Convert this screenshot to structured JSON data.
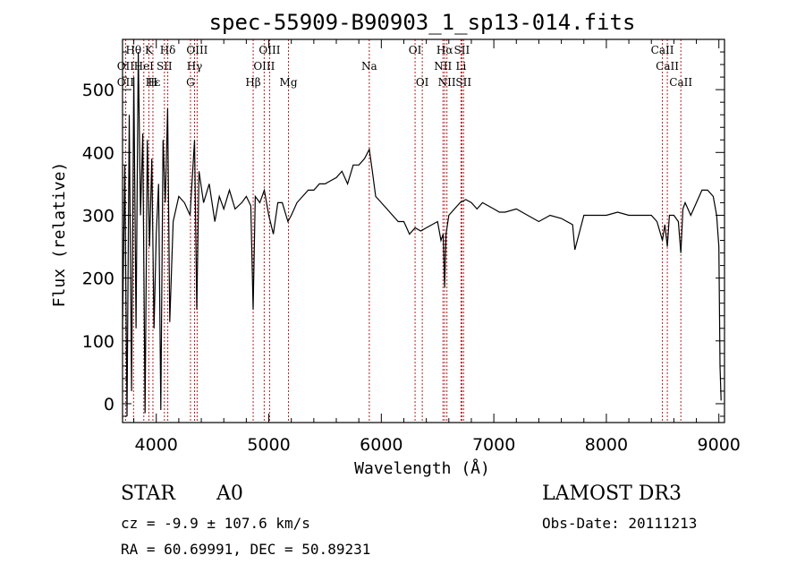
{
  "chart_data": {
    "type": "line",
    "title": "spec-55909-B90903_1_sp13-014.fits",
    "xlabel": "Wavelength (Å)",
    "ylabel": "Flux (relative)",
    "xlim": [
      3700,
      9050
    ],
    "ylim": [
      -30,
      580
    ],
    "xticks": [
      4000,
      5000,
      6000,
      7000,
      8000,
      9000
    ],
    "yticks": [
      0,
      100,
      200,
      300,
      400,
      500
    ],
    "grid": false,
    "series": [
      {
        "name": "flux",
        "x": [
          3700,
          3720,
          3740,
          3760,
          3780,
          3800,
          3820,
          3840,
          3860,
          3880,
          3900,
          3920,
          3940,
          3960,
          3980,
          4000,
          4020,
          4040,
          4060,
          4080,
          4101,
          4120,
          4150,
          4200,
          4250,
          4300,
          4340,
          4360,
          4380,
          4420,
          4470,
          4520,
          4560,
          4600,
          4650,
          4700,
          4760,
          4800,
          4840,
          4861,
          4880,
          4920,
          4960,
          5000,
          5040,
          5080,
          5120,
          5170,
          5200,
          5250,
          5300,
          5350,
          5400,
          5450,
          5500,
          5550,
          5600,
          5650,
          5700,
          5750,
          5800,
          5850,
          5893,
          5920,
          5950,
          6000,
          6050,
          6100,
          6150,
          6200,
          6250,
          6300,
          6350,
          6400,
          6450,
          6500,
          6530,
          6550,
          6563,
          6575,
          6600,
          6650,
          6700,
          6750,
          6800,
          6850,
          6900,
          6950,
          7000,
          7050,
          7100,
          7200,
          7300,
          7400,
          7500,
          7600,
          7700,
          7720,
          7800,
          7900,
          8000,
          8100,
          8200,
          8300,
          8400,
          8450,
          8498,
          8520,
          8542,
          8560,
          8600,
          8640,
          8662,
          8680,
          8700,
          8750,
          8800,
          8850,
          8900,
          8950,
          8980,
          9000,
          9010,
          9020
        ],
        "values": [
          120,
          380,
          -20,
          460,
          20,
          520,
          120,
          560,
          300,
          430,
          -15,
          420,
          250,
          390,
          120,
          270,
          350,
          -10,
          420,
          320,
          470,
          130,
          290,
          330,
          320,
          300,
          420,
          150,
          370,
          320,
          350,
          290,
          330,
          310,
          340,
          310,
          320,
          330,
          315,
          150,
          330,
          320,
          340,
          300,
          270,
          320,
          320,
          290,
          300,
          320,
          330,
          340,
          340,
          350,
          350,
          355,
          360,
          370,
          350,
          380,
          380,
          390,
          405,
          370,
          330,
          320,
          310,
          300,
          290,
          290,
          270,
          280,
          275,
          280,
          285,
          290,
          260,
          270,
          185,
          270,
          300,
          310,
          320,
          325,
          320,
          310,
          320,
          315,
          310,
          305,
          305,
          310,
          300,
          290,
          300,
          295,
          285,
          245,
          300,
          300,
          300,
          305,
          300,
          300,
          300,
          290,
          260,
          285,
          250,
          300,
          300,
          290,
          240,
          310,
          320,
          300,
          320,
          340,
          340,
          330,
          300,
          250,
          60,
          5
        ]
      }
    ],
    "annotations": [
      {
        "label": "Hθ",
        "x": 3798,
        "row": 0
      },
      {
        "label": "K",
        "x": 3934,
        "row": 0
      },
      {
        "label": "Hδ",
        "x": 4102,
        "row": 0
      },
      {
        "label": "OIII",
        "x": 4363,
        "row": 0
      },
      {
        "label": "OIII",
        "x": 5007,
        "row": 0
      },
      {
        "label": "OI",
        "x": 6300,
        "row": 0
      },
      {
        "label": "Hα",
        "x": 6563,
        "row": 0
      },
      {
        "label": "SII",
        "x": 6716,
        "row": 0
      },
      {
        "label": "CaII",
        "x": 8498,
        "row": 0
      },
      {
        "label": "OII",
        "x": 3727,
        "row": 1
      },
      {
        "label": "HeI",
        "x": 3889,
        "row": 1
      },
      {
        "label": "SII",
        "x": 4072,
        "row": 1
      },
      {
        "label": "Hγ",
        "x": 4340,
        "row": 1
      },
      {
        "label": "OIII",
        "x": 4959,
        "row": 1
      },
      {
        "label": "Na",
        "x": 5893,
        "row": 1
      },
      {
        "label": "NII",
        "x": 6548,
        "row": 1
      },
      {
        "label": "Li",
        "x": 6708,
        "row": 1
      },
      {
        "label": "CaII",
        "x": 8542,
        "row": 1
      },
      {
        "label": "OII",
        "x": 3727,
        "row": 2
      },
      {
        "label": "Hε",
        "x": 3970,
        "row": 2
      },
      {
        "label": "H",
        "x": 3968,
        "row": 2
      },
      {
        "label": "G",
        "x": 4304,
        "row": 2
      },
      {
        "label": "Hβ",
        "x": 4861,
        "row": 2
      },
      {
        "label": "Mg",
        "x": 5175,
        "row": 2
      },
      {
        "label": "OI",
        "x": 6364,
        "row": 2
      },
      {
        "label": "NII",
        "x": 6583,
        "row": 2
      },
      {
        "label": "SII",
        "x": 6731,
        "row": 2
      },
      {
        "label": "CaII",
        "x": 8662,
        "row": 2
      }
    ],
    "line_marker_color": "#b22222",
    "series_color": "#000000"
  },
  "info": {
    "object_class": "STAR",
    "subclass": "A0",
    "survey": "LAMOST DR3",
    "redshift_text": "cz = -9.9 ± 107.6 km/s",
    "obs_date": "Obs-Date: 20111213",
    "coords": "RA =  60.69991, DEC =  50.89231"
  }
}
